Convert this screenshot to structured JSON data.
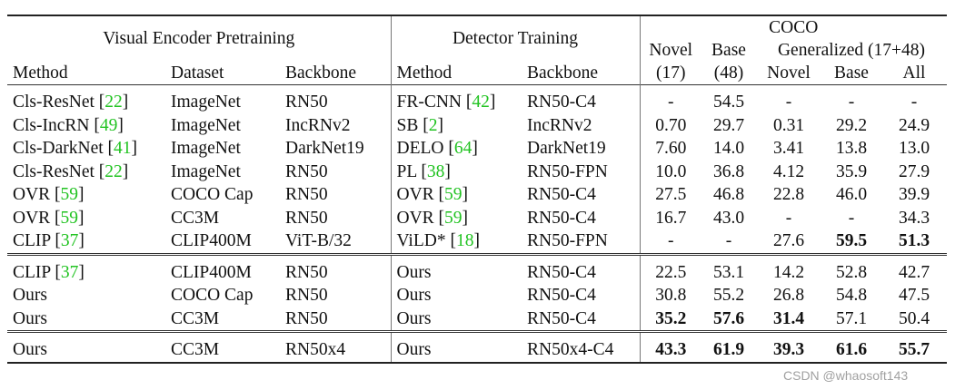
{
  "headers": {
    "visual_encoder": "Visual Encoder Pretraining",
    "detector_training": "Detector Training",
    "coco": "COCO",
    "generalized": "Generalized (17+48)",
    "method": "Method",
    "dataset": "Dataset",
    "backbone": "Backbone",
    "det_method": "Method",
    "det_backbone": "Backbone",
    "novel_top": "Novel",
    "novel_bottom": "(17)",
    "base_top": "Base",
    "base_bottom": "(48)",
    "gen_novel": "Novel",
    "gen_base": "Base",
    "gen_all": "All"
  },
  "rows": [
    {
      "method": "Cls-ResNet",
      "method_cite": "22",
      "dataset": "ImageNet",
      "backbone": "RN50",
      "det_method": "FR-CNN",
      "det_cite": "42",
      "det_backbone": "RN50-C4",
      "novel": "-",
      "base": "54.5",
      "g_novel": "-",
      "g_base": "-",
      "g_all": "-"
    },
    {
      "method": "Cls-IncRN",
      "method_cite": "49",
      "dataset": "ImageNet",
      "backbone": "IncRNv2",
      "det_method": "SB",
      "det_cite": "2",
      "det_backbone": "IncRNv2",
      "novel": "0.70",
      "base": "29.7",
      "g_novel": "0.31",
      "g_base": "29.2",
      "g_all": "24.9"
    },
    {
      "method": "Cls-DarkNet",
      "method_cite": "41",
      "dataset": "ImageNet",
      "backbone": "DarkNet19",
      "det_method": "DELO",
      "det_cite": "64",
      "det_backbone": "DarkNet19",
      "novel": "7.60",
      "base": "14.0",
      "g_novel": "3.41",
      "g_base": "13.8",
      "g_all": "13.0"
    },
    {
      "method": "Cls-ResNet",
      "method_cite": "22",
      "dataset": "ImageNet",
      "backbone": "RN50",
      "det_method": "PL",
      "det_cite": "38",
      "det_backbone": "RN50-FPN",
      "novel": "10.0",
      "base": "36.8",
      "g_novel": "4.12",
      "g_base": "35.9",
      "g_all": "27.9"
    },
    {
      "method": "OVR",
      "method_cite": "59",
      "dataset": "COCO Cap",
      "backbone": "RN50",
      "det_method": "OVR",
      "det_cite": "59",
      "det_backbone": "RN50-C4",
      "novel": "27.5",
      "base": "46.8",
      "g_novel": "22.8",
      "g_base": "46.0",
      "g_all": "39.9"
    },
    {
      "method": "OVR",
      "method_cite": "59",
      "dataset": "CC3M",
      "backbone": "RN50",
      "det_method": "OVR",
      "det_cite": "59",
      "det_backbone": "RN50-C4",
      "novel": "16.7",
      "base": "43.0",
      "g_novel": "-",
      "g_base": "-",
      "g_all": "34.3"
    },
    {
      "method": "CLIP",
      "method_cite": "37",
      "dataset": "CLIP400M",
      "backbone": "ViT-B/32",
      "det_method": "ViLD*",
      "det_cite": "18",
      "det_backbone": "RN50-FPN",
      "novel": "-",
      "base": "-",
      "g_novel": "27.6",
      "g_base": "59.5",
      "g_all": "51.3"
    },
    {
      "method": "CLIP",
      "method_cite": "37",
      "dataset": "CLIP400M",
      "backbone": "RN50",
      "det_method": "Ours",
      "det_cite": "",
      "det_backbone": "RN50-C4",
      "novel": "22.5",
      "base": "53.1",
      "g_novel": "14.2",
      "g_base": "52.8",
      "g_all": "42.7"
    },
    {
      "method": "Ours",
      "method_cite": "",
      "dataset": "COCO Cap",
      "backbone": "RN50",
      "det_method": "Ours",
      "det_cite": "",
      "det_backbone": "RN50-C4",
      "novel": "30.8",
      "base": "55.2",
      "g_novel": "26.8",
      "g_base": "54.8",
      "g_all": "47.5"
    },
    {
      "method": "Ours",
      "method_cite": "",
      "dataset": "CC3M",
      "backbone": "RN50",
      "det_method": "Ours",
      "det_cite": "",
      "det_backbone": "RN50-C4",
      "novel": "35.2",
      "base": "57.6",
      "g_novel": "31.4",
      "g_base": "57.1",
      "g_all": "50.4"
    },
    {
      "method": "Ours",
      "method_cite": "",
      "dataset": "CC3M",
      "backbone": "RN50x4",
      "det_method": "Ours",
      "det_cite": "",
      "det_backbone": "RN50x4-C4",
      "novel": "43.3",
      "base": "61.9",
      "g_novel": "39.3",
      "g_base": "61.6",
      "g_all": "55.7"
    }
  ],
  "watermark": "CSDN @whaosoft143"
}
